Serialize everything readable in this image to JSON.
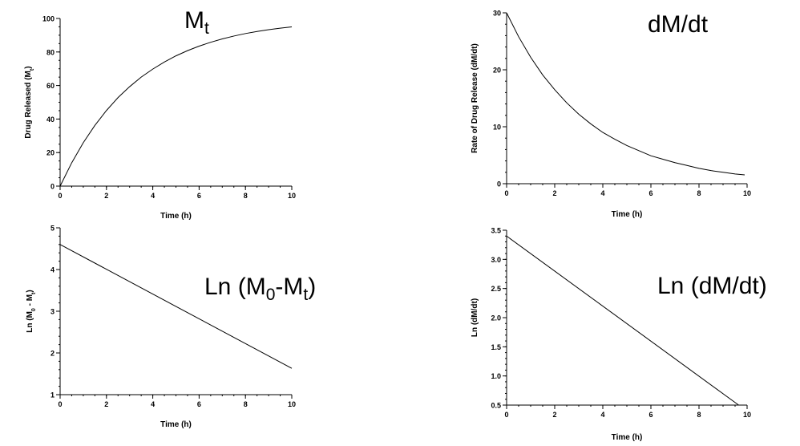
{
  "chart_data": [
    {
      "id": "mt",
      "type": "line",
      "title": {
        "main": "M",
        "sub": "t",
        "tail": ""
      },
      "xlabel": "Time (h)",
      "ylabel": {
        "pre": "Drug Released (M",
        "sub": "t",
        "post": ")"
      },
      "xlim": [
        0,
        10
      ],
      "ylim": [
        0,
        100
      ],
      "xticks": [
        0,
        2,
        4,
        6,
        8,
        10
      ],
      "xtick_labels": [
        "0",
        "2",
        "4",
        "6",
        "8",
        "10"
      ],
      "yticks": [
        0,
        20,
        40,
        60,
        80,
        100
      ],
      "ytick_labels": [
        "0",
        "20",
        "40",
        "60",
        "80",
        "100"
      ],
      "y_minor_step": 5,
      "grid": false,
      "series": [
        {
          "x": [
            0,
            0.5,
            1,
            1.5,
            2,
            2.5,
            3,
            3.5,
            4,
            4.5,
            5,
            5.5,
            6,
            6.5,
            7,
            7.5,
            8,
            8.5,
            9,
            9.5,
            10
          ],
          "y": [
            0,
            13.9,
            25.9,
            36.2,
            45.1,
            52.8,
            59.3,
            65.0,
            69.8,
            74.0,
            77.7,
            80.8,
            83.5,
            85.8,
            87.8,
            89.5,
            91.0,
            92.2,
            93.3,
            94.2,
            95.0
          ]
        }
      ]
    },
    {
      "id": "dmdt",
      "type": "line",
      "title": {
        "main": "dM/dt",
        "sub": "",
        "tail": ""
      },
      "xlabel": "Time (h)",
      "ylabel": {
        "pre": "Rate of Drug Release (dM/dt)",
        "sub": "",
        "post": ""
      },
      "xlim": [
        0,
        10
      ],
      "ylim": [
        0,
        30
      ],
      "xticks": [
        0,
        2,
        4,
        6,
        8,
        10
      ],
      "xtick_labels": [
        "0",
        "2",
        "4",
        "6",
        "8",
        "10"
      ],
      "yticks": [
        0,
        10,
        20,
        30
      ],
      "ytick_labels": [
        "0",
        "10",
        "20",
        "30"
      ],
      "y_minor_step": 2,
      "grid": false,
      "series": [
        {
          "x": [
            0,
            0.5,
            1,
            1.5,
            2,
            2.5,
            3,
            3.5,
            4,
            4.5,
            5,
            5.5,
            6,
            6.5,
            7,
            7.5,
            8,
            8.5,
            9,
            9.5,
            9.9
          ],
          "y": [
            30.0,
            25.8,
            22.2,
            19.1,
            16.5,
            14.2,
            12.2,
            10.5,
            9.0,
            7.8,
            6.7,
            5.8,
            4.9,
            4.3,
            3.7,
            3.2,
            2.7,
            2.3,
            2.0,
            1.7,
            1.55
          ]
        }
      ]
    },
    {
      "id": "ln-m",
      "type": "line",
      "title": {
        "main": "Ln (M",
        "sub": "0",
        "tail": "-M",
        "sub2": "t",
        "end": ")"
      },
      "xlabel": "Time (h)",
      "ylabel": {
        "pre": "Ln (M",
        "sub": "0",
        "post": " - M",
        "sub2": "t",
        "post2": ")"
      },
      "xlim": [
        0,
        10
      ],
      "ylim": [
        1,
        5
      ],
      "xticks": [
        0,
        2,
        4,
        6,
        8,
        10
      ],
      "xtick_labels": [
        "0",
        "2",
        "4",
        "6",
        "8",
        "10"
      ],
      "yticks": [
        1,
        2,
        3,
        4,
        5
      ],
      "ytick_labels": [
        "1",
        "2",
        "3",
        "4",
        "5"
      ],
      "y_minor_step": 0.2,
      "grid": false,
      "series": [
        {
          "x": [
            0,
            10
          ],
          "y": [
            4.6,
            1.63
          ]
        }
      ]
    },
    {
      "id": "ln-dmdt",
      "type": "line",
      "title": {
        "main": "Ln (dM/dt)",
        "sub": "",
        "tail": ""
      },
      "xlabel": "Time (h)",
      "ylabel": {
        "pre": "Ln (dM/dt)",
        "sub": "",
        "post": ""
      },
      "xlim": [
        0,
        10
      ],
      "ylim": [
        0.5,
        3.5
      ],
      "xticks": [
        0,
        2,
        4,
        6,
        8,
        10
      ],
      "xtick_labels": [
        "0",
        "2",
        "4",
        "6",
        "8",
        "10"
      ],
      "yticks": [
        0.5,
        1.0,
        1.5,
        2.0,
        2.5,
        3.0,
        3.5
      ],
      "ytick_labels": [
        "0.5",
        "1.0",
        "1.5",
        "2.0",
        "2.5",
        "3.0",
        "3.5"
      ],
      "y_minor_step": 0.1,
      "grid": false,
      "series": [
        {
          "x": [
            0,
            9.65
          ],
          "y": [
            3.4,
            0.5
          ]
        }
      ]
    }
  ]
}
